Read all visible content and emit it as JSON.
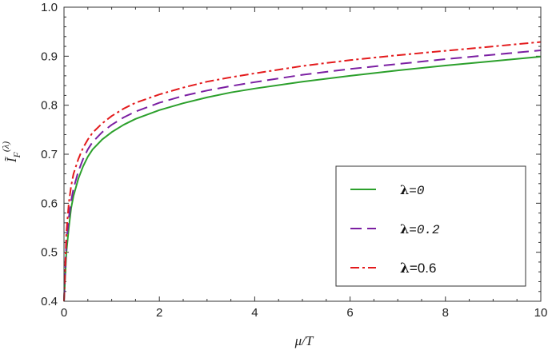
{
  "chart_data": {
    "type": "line",
    "title": "",
    "xlabel": "μ/T",
    "ylabel": "Ĩ_F^(λ)",
    "xlim": [
      0,
      10
    ],
    "ylim": [
      0.4,
      1.0
    ],
    "xticks": [
      "0",
      "2",
      "4",
      "6",
      "8",
      "10"
    ],
    "yticks": [
      "0.4",
      "0.5",
      "0.6",
      "0.7",
      "0.8",
      "0.9",
      "1.0"
    ],
    "grid": false,
    "legend_position": "bottom-right",
    "series": [
      {
        "name": "λ=0",
        "legend_symbol": "λ",
        "legend_suffix": "=0",
        "color": "#2ca02c",
        "dash": "solid",
        "x": [
          0.0,
          0.05,
          0.1,
          0.15,
          0.2,
          0.3,
          0.4,
          0.5,
          0.6,
          0.8,
          1.0,
          1.25,
          1.5,
          2.0,
          2.5,
          3.0,
          3.5,
          4.0,
          5.0,
          6.0,
          7.0,
          8.0,
          9.0,
          10.0
        ],
        "y": [
          0.4,
          0.5,
          0.55,
          0.59,
          0.615,
          0.65,
          0.675,
          0.695,
          0.71,
          0.73,
          0.745,
          0.76,
          0.772,
          0.79,
          0.804,
          0.816,
          0.826,
          0.834,
          0.848,
          0.86,
          0.871,
          0.881,
          0.89,
          0.899
        ]
      },
      {
        "name": "λ=0.2",
        "legend_symbol": "λ",
        "legend_suffix": "=0.2",
        "color": "#7b1fa2",
        "dash": "dashed",
        "x": [
          0.0,
          0.05,
          0.1,
          0.15,
          0.2,
          0.3,
          0.4,
          0.5,
          0.6,
          0.8,
          1.0,
          1.25,
          1.5,
          2.0,
          2.5,
          3.0,
          3.5,
          4.0,
          5.0,
          6.0,
          7.0,
          8.0,
          9.0,
          10.0
        ],
        "y": [
          0.4,
          0.52,
          0.57,
          0.605,
          0.63,
          0.665,
          0.69,
          0.71,
          0.725,
          0.745,
          0.76,
          0.775,
          0.787,
          0.805,
          0.819,
          0.83,
          0.839,
          0.847,
          0.862,
          0.874,
          0.884,
          0.894,
          0.903,
          0.912
        ]
      },
      {
        "name": "λ=0.6",
        "legend_symbol": "λ",
        "legend_suffix": "=0.6",
        "color": "#e31a1c",
        "dash": "dashdot",
        "x": [
          0.0,
          0.05,
          0.1,
          0.15,
          0.2,
          0.3,
          0.4,
          0.5,
          0.6,
          0.8,
          1.0,
          1.25,
          1.5,
          2.0,
          2.5,
          3.0,
          3.5,
          4.0,
          5.0,
          6.0,
          7.0,
          8.0,
          9.0,
          10.0
        ],
        "y": [
          0.4,
          0.54,
          0.6,
          0.635,
          0.66,
          0.69,
          0.713,
          0.73,
          0.744,
          0.763,
          0.778,
          0.793,
          0.805,
          0.822,
          0.836,
          0.848,
          0.857,
          0.865,
          0.88,
          0.892,
          0.902,
          0.911,
          0.92,
          0.929
        ]
      }
    ]
  }
}
